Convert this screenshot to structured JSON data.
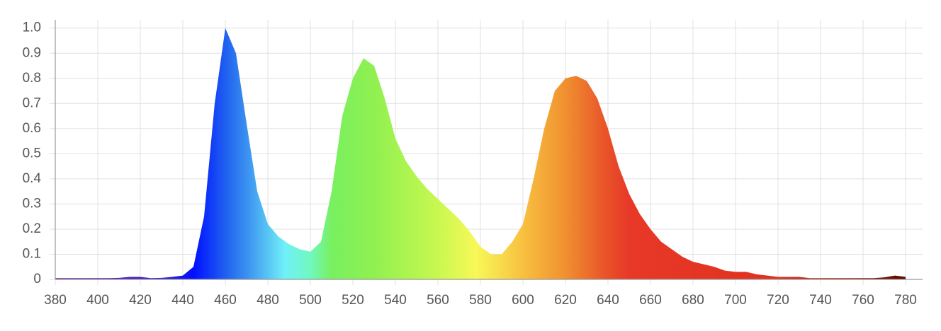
{
  "chart_data": {
    "type": "area",
    "x": [
      380,
      385,
      390,
      395,
      400,
      405,
      410,
      415,
      420,
      425,
      430,
      435,
      440,
      445,
      450,
      455,
      460,
      465,
      470,
      475,
      480,
      485,
      490,
      495,
      500,
      505,
      510,
      515,
      520,
      525,
      530,
      535,
      540,
      545,
      550,
      555,
      560,
      565,
      570,
      575,
      580,
      585,
      590,
      595,
      600,
      605,
      610,
      615,
      620,
      625,
      630,
      635,
      640,
      645,
      650,
      655,
      660,
      665,
      670,
      675,
      680,
      685,
      690,
      695,
      700,
      705,
      710,
      715,
      720,
      725,
      730,
      735,
      740,
      745,
      750,
      755,
      760,
      765,
      770,
      775,
      780
    ],
    "values": [
      0.005,
      0.005,
      0.005,
      0.005,
      0.005,
      0.005,
      0.006,
      0.01,
      0.01,
      0.005,
      0.006,
      0.01,
      0.015,
      0.05,
      0.25,
      0.7,
      1.0,
      0.9,
      0.62,
      0.35,
      0.22,
      0.17,
      0.14,
      0.12,
      0.11,
      0.15,
      0.35,
      0.65,
      0.8,
      0.88,
      0.85,
      0.72,
      0.56,
      0.47,
      0.41,
      0.36,
      0.32,
      0.28,
      0.24,
      0.19,
      0.13,
      0.1,
      0.1,
      0.15,
      0.22,
      0.4,
      0.6,
      0.75,
      0.8,
      0.81,
      0.79,
      0.72,
      0.6,
      0.45,
      0.34,
      0.26,
      0.2,
      0.15,
      0.12,
      0.09,
      0.07,
      0.06,
      0.05,
      0.035,
      0.03,
      0.03,
      0.02,
      0.015,
      0.01,
      0.01,
      0.01,
      0.005,
      0.005,
      0.005,
      0.005,
      0.005,
      0.005,
      0.005,
      0.008,
      0.015,
      0.01
    ],
    "fill_gradient": [
      {
        "x": 380,
        "color": "#7a1fa8"
      },
      {
        "x": 430,
        "color": "#3a1fd0"
      },
      {
        "x": 445,
        "color": "#0010ff"
      },
      {
        "x": 460,
        "color": "#2060f0"
      },
      {
        "x": 470,
        "color": "#3a90f0"
      },
      {
        "x": 488,
        "color": "#70f0f8"
      },
      {
        "x": 500,
        "color": "#70f8c0"
      },
      {
        "x": 510,
        "color": "#78f060"
      },
      {
        "x": 530,
        "color": "#90f050"
      },
      {
        "x": 560,
        "color": "#c8f850"
      },
      {
        "x": 578,
        "color": "#f8f858"
      },
      {
        "x": 600,
        "color": "#f8c040"
      },
      {
        "x": 620,
        "color": "#f09030"
      },
      {
        "x": 640,
        "color": "#e85028"
      },
      {
        "x": 650,
        "color": "#e83828"
      },
      {
        "x": 720,
        "color": "#e03020"
      },
      {
        "x": 750,
        "color": "#b02010"
      },
      {
        "x": 780,
        "color": "#600800"
      }
    ],
    "xlim": [
      380,
      788
    ],
    "ylim": [
      0,
      1.033
    ],
    "xticks": [
      380,
      400,
      420,
      440,
      460,
      480,
      500,
      520,
      540,
      560,
      580,
      600,
      620,
      640,
      660,
      680,
      700,
      720,
      740,
      760,
      780
    ],
    "yticks": [
      0,
      0.1,
      0.2,
      0.3,
      0.4,
      0.5,
      0.6,
      0.7,
      0.8,
      0.9,
      {
        "value": 1,
        "label": "1.0"
      }
    ],
    "grid": true
  }
}
